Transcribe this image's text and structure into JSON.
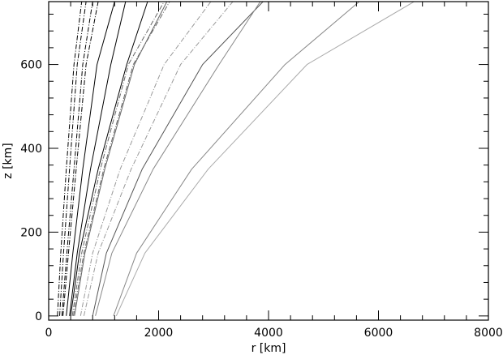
{
  "chart_data": {
    "type": "line",
    "xlabel": "r [km]",
    "ylabel": "z [km]",
    "xlim": [
      0,
      8000
    ],
    "ylim": [
      -10,
      750
    ],
    "x_ticks": [
      0,
      2000,
      4000,
      6000,
      8000
    ],
    "y_ticks": [
      0,
      200,
      400,
      600
    ],
    "x_tick_labels": [
      "0",
      "2000",
      "4000",
      "6000",
      "8000"
    ],
    "y_tick_labels": [
      "0",
      "200",
      "400",
      "600"
    ],
    "grid": false,
    "series": [
      {
        "style": "dashdot",
        "color": "#000000",
        "x": [
          160,
          220,
          320,
          460,
          600
        ],
        "y": [
          0,
          150,
          350,
          600,
          750
        ]
      },
      {
        "style": "dashdot",
        "color": "#000000",
        "x": [
          200,
          270,
          380,
          520,
          680
        ],
        "y": [
          0,
          150,
          350,
          600,
          750
        ]
      },
      {
        "style": "dashdot",
        "color": "#000000",
        "x": [
          240,
          330,
          460,
          620,
          800
        ],
        "y": [
          0,
          150,
          350,
          600,
          750
        ]
      },
      {
        "style": "dashdot",
        "color": "#000000",
        "x": [
          260,
          360,
          500,
          680,
          900
        ],
        "y": [
          0,
          150,
          350,
          600,
          750
        ]
      },
      {
        "style": "solid",
        "color": "#000000",
        "x": [
          320,
          440,
          620,
          880,
          1200
        ],
        "y": [
          0,
          150,
          350,
          600,
          750
        ]
      },
      {
        "style": "solid",
        "color": "#000000",
        "x": [
          380,
          520,
          760,
          1130,
          1400
        ],
        "y": [
          0,
          150,
          350,
          600,
          750
        ]
      },
      {
        "style": "solid",
        "color": "#000000",
        "x": [
          400,
          560,
          900,
          1420,
          1800
        ],
        "y": [
          0,
          150,
          350,
          600,
          750
        ]
      },
      {
        "style": "dashdot",
        "color": "#666666",
        "x": [
          430,
          600,
          940,
          1450,
          2100
        ],
        "y": [
          0,
          150,
          350,
          600,
          750
        ]
      },
      {
        "style": "dashdot",
        "color": "#666666",
        "x": [
          450,
          640,
          1000,
          1540,
          2200
        ],
        "y": [
          0,
          150,
          350,
          600,
          750
        ]
      },
      {
        "style": "solid",
        "color": "#666666",
        "x": [
          470,
          660,
          1020,
          1560,
          2150
        ],
        "y": [
          0,
          150,
          350,
          600,
          750
        ]
      },
      {
        "style": "dashdot",
        "color": "#999999",
        "x": [
          580,
          800,
          1300,
          2100,
          2950
        ],
        "y": [
          0,
          150,
          350,
          600,
          750
        ]
      },
      {
        "style": "dashdot",
        "color": "#999999",
        "x": [
          640,
          900,
          1500,
          2400,
          3350
        ],
        "y": [
          0,
          150,
          350,
          600,
          750
        ]
      },
      {
        "style": "solid",
        "color": "#555555",
        "x": [
          800,
          1050,
          1700,
          2800,
          3900
        ],
        "y": [
          0,
          150,
          350,
          600,
          750
        ]
      },
      {
        "style": "solid",
        "color": "#888888",
        "x": [
          850,
          1150,
          1900,
          3100,
          3850
        ],
        "y": [
          0,
          150,
          350,
          600,
          750
        ]
      },
      {
        "style": "solid",
        "color": "#888888",
        "x": [
          1180,
          1600,
          2600,
          4300,
          5650
        ],
        "y": [
          0,
          150,
          350,
          600,
          750
        ]
      },
      {
        "style": "solid",
        "color": "#aaaaaa",
        "x": [
          1230,
          1750,
          2900,
          4700,
          6650
        ],
        "y": [
          0,
          150,
          350,
          600,
          750
        ]
      }
    ]
  }
}
